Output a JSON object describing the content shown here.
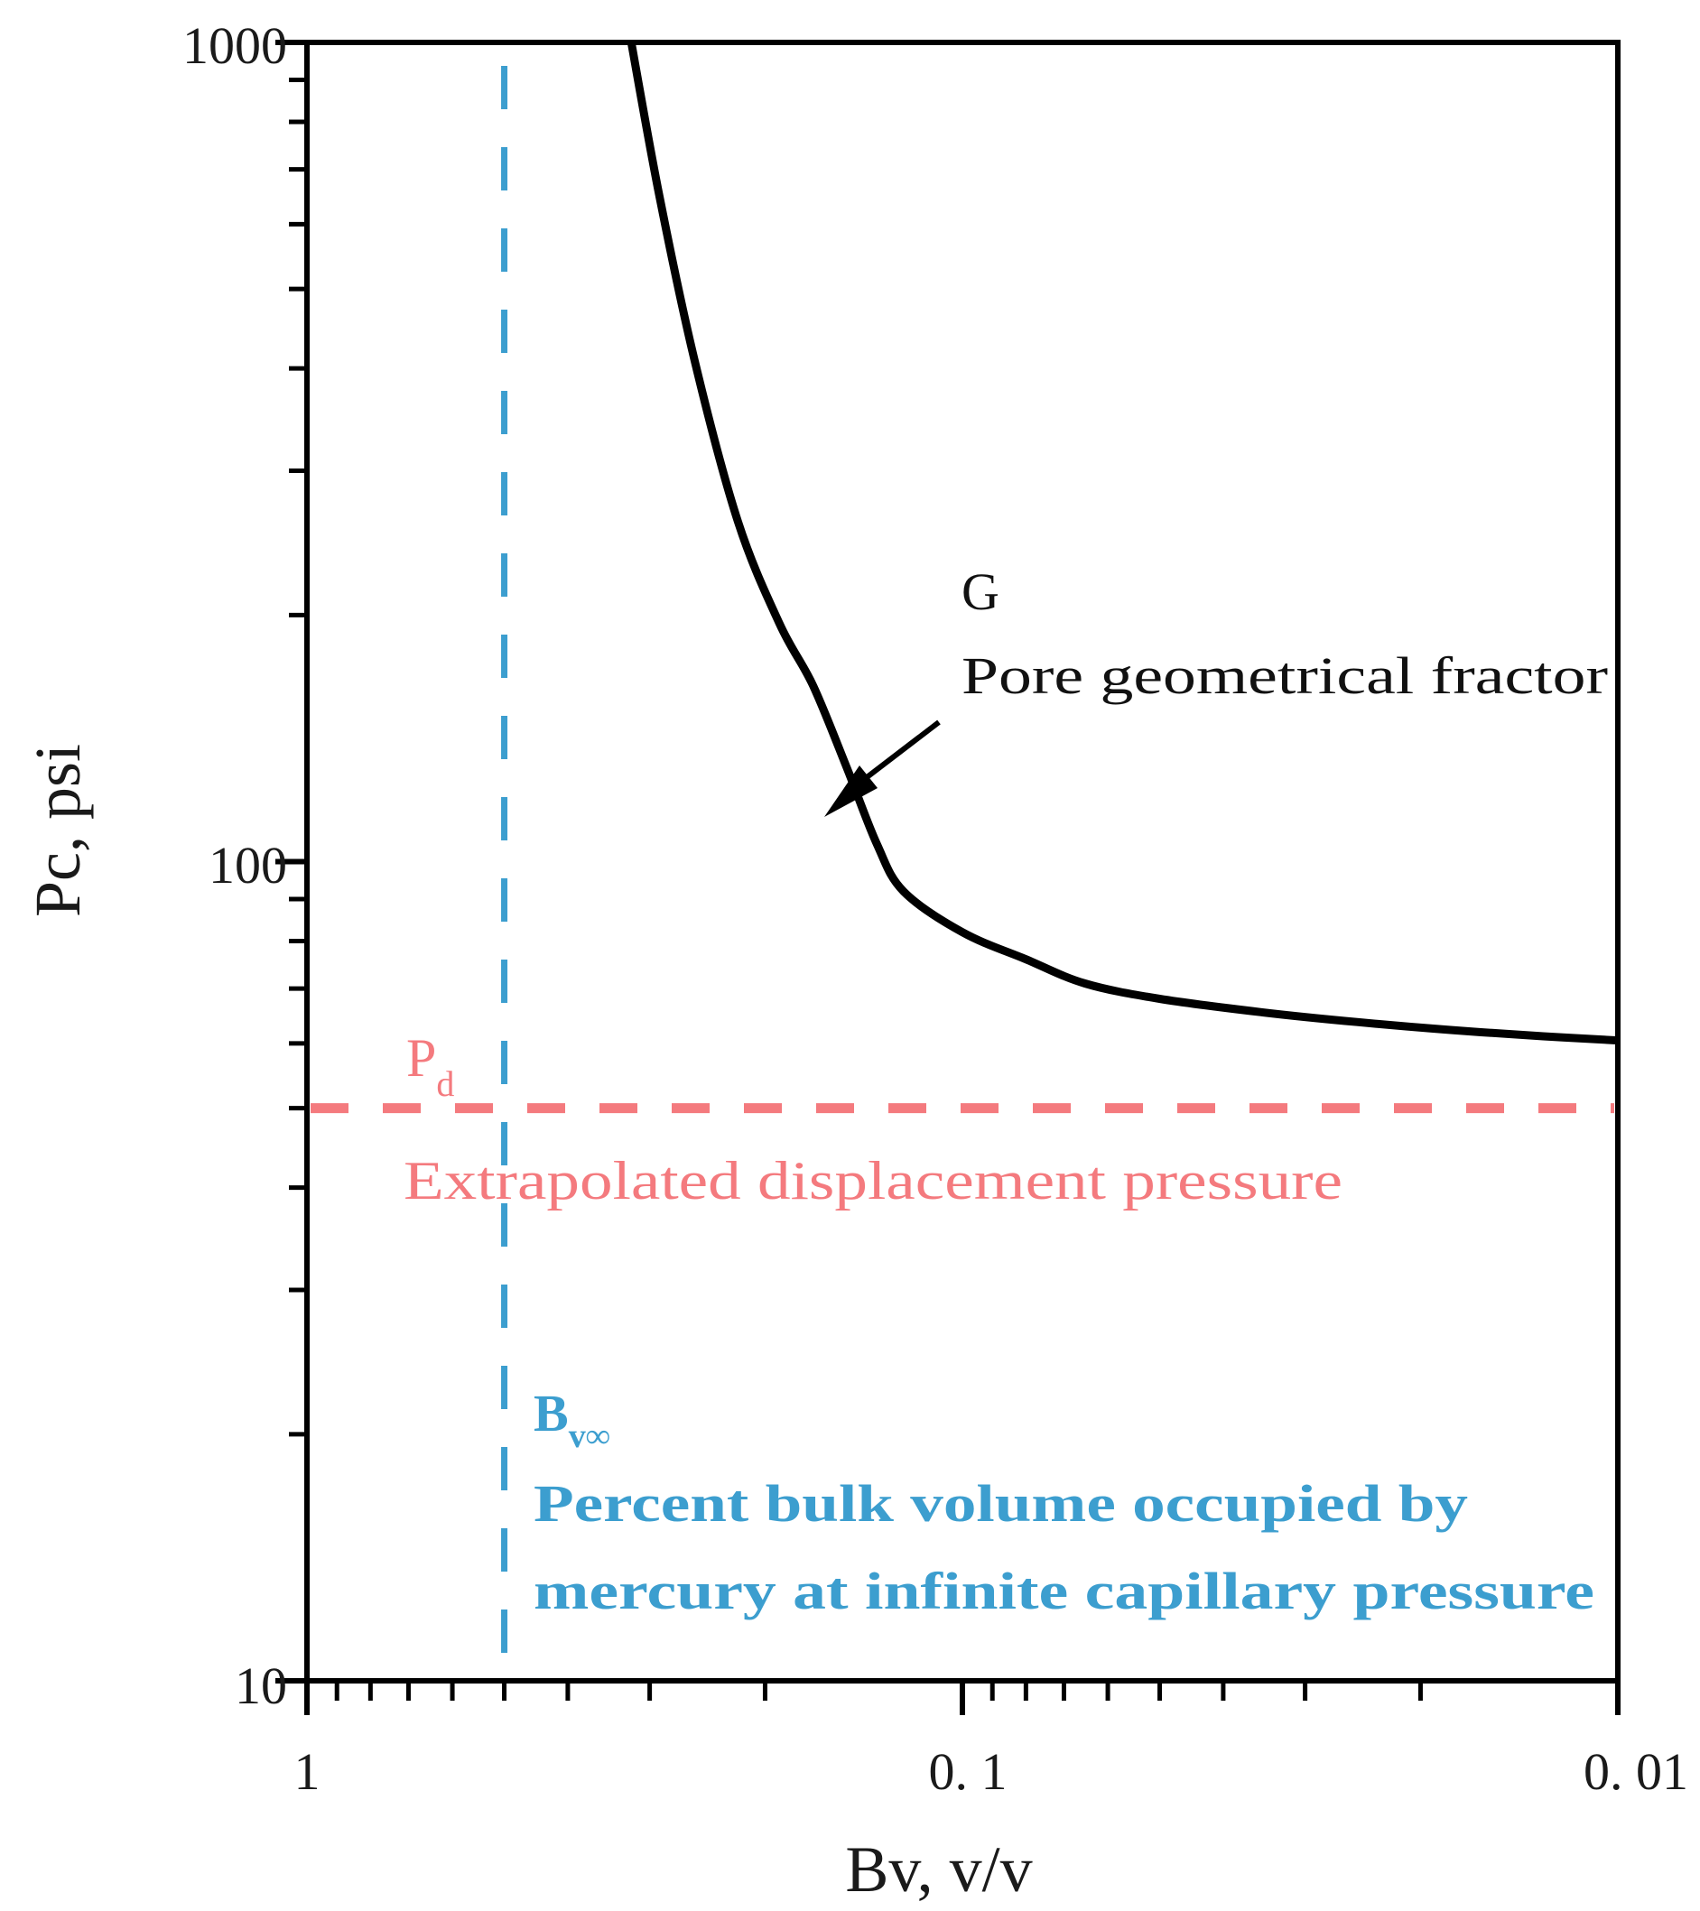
{
  "chart_data": {
    "type": "line",
    "title": "",
    "xlabel": "Bv, v/v",
    "ylabel": "Pc, psi",
    "xscale": "log",
    "yscale": "log",
    "x_reversed": true,
    "xlim": [
      1,
      0.01
    ],
    "ylim": [
      10,
      1000
    ],
    "grid": false,
    "x_ticks": [
      {
        "value": 1,
        "label": "1"
      },
      {
        "value": 0.1,
        "label": "0. 1"
      },
      {
        "value": 0.01,
        "label": "0. 01"
      }
    ],
    "y_ticks": [
      {
        "value": 1000,
        "label": "1000"
      },
      {
        "value": 100,
        "label": "100"
      },
      {
        "value": 10,
        "label": "10"
      }
    ],
    "series": [
      {
        "name": "G - Pore geometrical fractor curve",
        "color": "#000000",
        "style": "solid",
        "x": [
          0.32,
          0.29,
          0.256,
          0.22,
          0.19,
          0.169,
          0.15,
          0.135,
          0.123,
          0.1,
          0.08,
          0.065,
          0.05,
          0.035,
          0.025,
          0.018,
          0.013,
          0.01
        ],
        "y": [
          1000,
          650,
          408,
          260,
          195,
          164,
          130,
          105,
          92,
          82,
          76,
          71,
          68,
          65.5,
          63.7,
          62.3,
          61.2,
          60.5
        ]
      },
      {
        "name": "Pd - Extrapolated displacement pressure",
        "color": "#f47a7e",
        "style": "dashed",
        "x": [
          1,
          0.01
        ],
        "y": [
          50,
          50
        ]
      },
      {
        "name": "Bv∞ - Percent bulk volume occupied by mercury at infinite capillary pressure",
        "color": "#3c9ecf",
        "style": "dashed",
        "x": [
          0.5,
          0.5
        ],
        "y": [
          10,
          1000
        ]
      }
    ],
    "annotations": [
      {
        "text": "G",
        "x": 0.062,
        "y": 190,
        "color": "#000000"
      },
      {
        "text": "Pore geometrical fractor",
        "x": 0.062,
        "y": 155,
        "color": "#000000"
      },
      {
        "text": "Pd",
        "x": 0.78,
        "y": 57,
        "color": "#f47a7e"
      },
      {
        "text": "Extrapolated displacement pressure",
        "x": 0.78,
        "y": 40,
        "color": "#f47a7e"
      },
      {
        "text": "Bv∞",
        "x": 0.45,
        "y": 22,
        "color": "#3c9ecf"
      },
      {
        "text": "Percent bulk volume occupied by",
        "x": 0.45,
        "y": 17,
        "color": "#3c9ecf"
      },
      {
        "text": "mercury at infinite capillary pressure",
        "x": 0.45,
        "y": 13.5,
        "color": "#3c9ecf"
      }
    ],
    "arrow": {
      "from": {
        "x": 0.082,
        "y": 135
      },
      "to": {
        "x": 0.13,
        "y": 103
      }
    }
  },
  "labels": {
    "xlabel": "Bv, v/v",
    "ylabel": "Pc, psi",
    "g_symbol": "G",
    "g_desc": "Pore geometrical fractor",
    "pd_main": "P",
    "pd_sub": "d",
    "pd_desc": "Extrapolated displacement pressure",
    "bv_main": "B",
    "bv_sub": "v∞",
    "bv_desc1": "Percent bulk volume occupied by",
    "bv_desc2": "mercury at infinite capillary pressure",
    "xtick_1": "1",
    "xtick_01": "0. 1",
    "xtick_001": "0. 01",
    "ytick_1000": "1000",
    "ytick_100": "100",
    "ytick_10": "10"
  },
  "colors": {
    "curve": "#000000",
    "pd_line": "#f47a7e",
    "bv_line": "#3c9ecf"
  }
}
